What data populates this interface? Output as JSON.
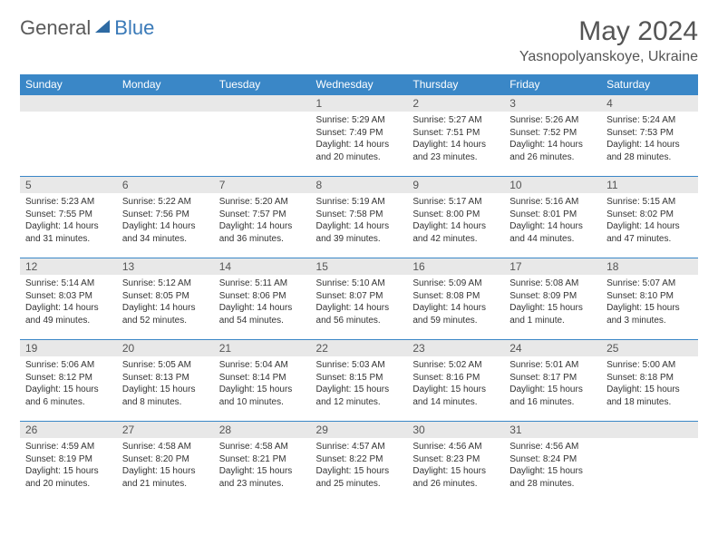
{
  "logo": {
    "text1": "General",
    "text2": "Blue",
    "icon_color": "#2e6aa3"
  },
  "title": "May 2024",
  "location": "Yasnopolyanskoye, Ukraine",
  "colors": {
    "header_bg": "#3a87c7",
    "header_text": "#ffffff",
    "daynum_bg": "#e8e8e8",
    "border": "#3a87c7"
  },
  "day_names": [
    "Sunday",
    "Monday",
    "Tuesday",
    "Wednesday",
    "Thursday",
    "Friday",
    "Saturday"
  ],
  "weeks": [
    [
      null,
      null,
      null,
      {
        "n": "1",
        "sr": "5:29 AM",
        "ss": "7:49 PM",
        "dl": "14 hours and 20 minutes."
      },
      {
        "n": "2",
        "sr": "5:27 AM",
        "ss": "7:51 PM",
        "dl": "14 hours and 23 minutes."
      },
      {
        "n": "3",
        "sr": "5:26 AM",
        "ss": "7:52 PM",
        "dl": "14 hours and 26 minutes."
      },
      {
        "n": "4",
        "sr": "5:24 AM",
        "ss": "7:53 PM",
        "dl": "14 hours and 28 minutes."
      }
    ],
    [
      {
        "n": "5",
        "sr": "5:23 AM",
        "ss": "7:55 PM",
        "dl": "14 hours and 31 minutes."
      },
      {
        "n": "6",
        "sr": "5:22 AM",
        "ss": "7:56 PM",
        "dl": "14 hours and 34 minutes."
      },
      {
        "n": "7",
        "sr": "5:20 AM",
        "ss": "7:57 PM",
        "dl": "14 hours and 36 minutes."
      },
      {
        "n": "8",
        "sr": "5:19 AM",
        "ss": "7:58 PM",
        "dl": "14 hours and 39 minutes."
      },
      {
        "n": "9",
        "sr": "5:17 AM",
        "ss": "8:00 PM",
        "dl": "14 hours and 42 minutes."
      },
      {
        "n": "10",
        "sr": "5:16 AM",
        "ss": "8:01 PM",
        "dl": "14 hours and 44 minutes."
      },
      {
        "n": "11",
        "sr": "5:15 AM",
        "ss": "8:02 PM",
        "dl": "14 hours and 47 minutes."
      }
    ],
    [
      {
        "n": "12",
        "sr": "5:14 AM",
        "ss": "8:03 PM",
        "dl": "14 hours and 49 minutes."
      },
      {
        "n": "13",
        "sr": "5:12 AM",
        "ss": "8:05 PM",
        "dl": "14 hours and 52 minutes."
      },
      {
        "n": "14",
        "sr": "5:11 AM",
        "ss": "8:06 PM",
        "dl": "14 hours and 54 minutes."
      },
      {
        "n": "15",
        "sr": "5:10 AM",
        "ss": "8:07 PM",
        "dl": "14 hours and 56 minutes."
      },
      {
        "n": "16",
        "sr": "5:09 AM",
        "ss": "8:08 PM",
        "dl": "14 hours and 59 minutes."
      },
      {
        "n": "17",
        "sr": "5:08 AM",
        "ss": "8:09 PM",
        "dl": "15 hours and 1 minute."
      },
      {
        "n": "18",
        "sr": "5:07 AM",
        "ss": "8:10 PM",
        "dl": "15 hours and 3 minutes."
      }
    ],
    [
      {
        "n": "19",
        "sr": "5:06 AM",
        "ss": "8:12 PM",
        "dl": "15 hours and 6 minutes."
      },
      {
        "n": "20",
        "sr": "5:05 AM",
        "ss": "8:13 PM",
        "dl": "15 hours and 8 minutes."
      },
      {
        "n": "21",
        "sr": "5:04 AM",
        "ss": "8:14 PM",
        "dl": "15 hours and 10 minutes."
      },
      {
        "n": "22",
        "sr": "5:03 AM",
        "ss": "8:15 PM",
        "dl": "15 hours and 12 minutes."
      },
      {
        "n": "23",
        "sr": "5:02 AM",
        "ss": "8:16 PM",
        "dl": "15 hours and 14 minutes."
      },
      {
        "n": "24",
        "sr": "5:01 AM",
        "ss": "8:17 PM",
        "dl": "15 hours and 16 minutes."
      },
      {
        "n": "25",
        "sr": "5:00 AM",
        "ss": "8:18 PM",
        "dl": "15 hours and 18 minutes."
      }
    ],
    [
      {
        "n": "26",
        "sr": "4:59 AM",
        "ss": "8:19 PM",
        "dl": "15 hours and 20 minutes."
      },
      {
        "n": "27",
        "sr": "4:58 AM",
        "ss": "8:20 PM",
        "dl": "15 hours and 21 minutes."
      },
      {
        "n": "28",
        "sr": "4:58 AM",
        "ss": "8:21 PM",
        "dl": "15 hours and 23 minutes."
      },
      {
        "n": "29",
        "sr": "4:57 AM",
        "ss": "8:22 PM",
        "dl": "15 hours and 25 minutes."
      },
      {
        "n": "30",
        "sr": "4:56 AM",
        "ss": "8:23 PM",
        "dl": "15 hours and 26 minutes."
      },
      {
        "n": "31",
        "sr": "4:56 AM",
        "ss": "8:24 PM",
        "dl": "15 hours and 28 minutes."
      },
      null
    ]
  ],
  "labels": {
    "sunrise": "Sunrise:",
    "sunset": "Sunset:",
    "daylight": "Daylight:"
  }
}
